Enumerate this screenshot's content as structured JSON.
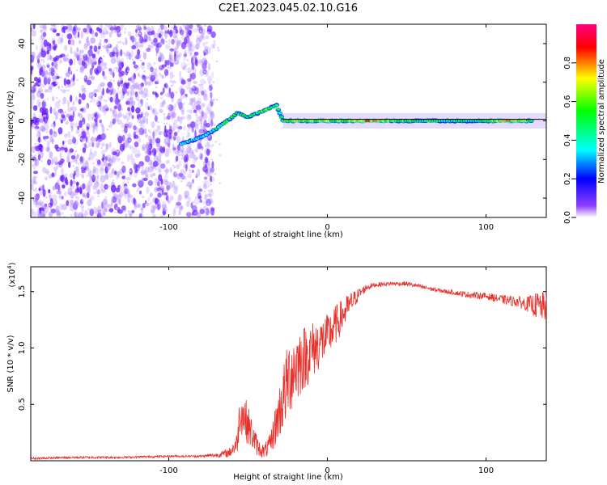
{
  "title": "C2E1.2023.045.02.10.G16",
  "chart_data": [
    {
      "type": "heatmap",
      "description_of_axes": "spectrogram",
      "xlabel": "Height of straight line (km)",
      "ylabel": "Frequency (Hz)",
      "xlim": [
        -187,
        138
      ],
      "ylim": [
        -50,
        50
      ],
      "xticks": [
        -100,
        0,
        100
      ],
      "xtick_labels": [
        "-100",
        "0",
        "100"
      ],
      "yticks": [
        -40,
        -20,
        0,
        20,
        40
      ],
      "ytick_labels": [
        "-40",
        "-20",
        "0",
        "20",
        "40"
      ],
      "colorbar": {
        "label": "Normalized spectral amplitude",
        "range": [
          0,
          1
        ],
        "ticks": [
          0.0,
          0.2,
          0.4,
          0.6,
          0.8
        ],
        "tick_labels": [
          "0.0",
          "0.2",
          "0.4",
          "0.6",
          "0.8"
        ],
        "colors": [
          "#ffffff",
          "#7f00ff",
          "#0000ff",
          "#00ffff",
          "#00ff00",
          "#ffff00",
          "#ff0000",
          "#ff0080"
        ]
      },
      "noise_region_x": [
        -187,
        -72
      ],
      "signal_track": [
        {
          "x": -92,
          "y": -12,
          "amp": 0.35
        },
        {
          "x": -85,
          "y": -10,
          "amp": 0.4
        },
        {
          "x": -78,
          "y": -8,
          "amp": 0.4
        },
        {
          "x": -70,
          "y": -4,
          "amp": 0.45
        },
        {
          "x": -63,
          "y": 0,
          "amp": 0.5
        },
        {
          "x": -57,
          "y": 4,
          "amp": 0.5
        },
        {
          "x": -50,
          "y": 2,
          "amp": 0.45
        },
        {
          "x": -44,
          "y": 4,
          "amp": 0.5
        },
        {
          "x": -38,
          "y": 6,
          "amp": 0.55
        },
        {
          "x": -32,
          "y": 8,
          "amp": 0.5
        },
        {
          "x": -28,
          "y": 0,
          "amp": 0.45
        },
        {
          "x": -20,
          "y": 0,
          "amp": 0.7
        },
        {
          "x": -10,
          "y": 0,
          "amp": 0.6
        },
        {
          "x": 0,
          "y": 0,
          "amp": 0.65
        },
        {
          "x": 10,
          "y": 0,
          "amp": 0.6
        },
        {
          "x": 25,
          "y": 0,
          "amp": 0.8
        },
        {
          "x": 45,
          "y": 0,
          "amp": 0.55
        },
        {
          "x": 65,
          "y": 0,
          "amp": 0.5
        },
        {
          "x": 85,
          "y": 0,
          "amp": 0.45
        },
        {
          "x": 100,
          "y": 0,
          "amp": 0.55
        },
        {
          "x": 115,
          "y": 0,
          "amp": 0.75
        },
        {
          "x": 130,
          "y": 0,
          "amp": 0.5
        }
      ]
    },
    {
      "type": "line",
      "xlabel": "Height of straight line (km)",
      "ylabel": "SNR (10 * v/v)",
      "yscale_label": "(x10",
      "yscale_exp": "4",
      "yscale_close": ")",
      "xlim": [
        -187,
        138
      ],
      "ylim": [
        0,
        1.72
      ],
      "xticks": [
        -100,
        0,
        100
      ],
      "xtick_labels": [
        "-100",
        "0",
        "100"
      ],
      "yticks": [
        0.5,
        1.0,
        1.5
      ],
      "ytick_labels": [
        "0.5",
        "1.0",
        "1.5"
      ],
      "color": "#e8302a",
      "x": [
        -187,
        -160,
        -130,
        -100,
        -80,
        -70,
        -62,
        -57,
        -55,
        -52,
        -48,
        -44,
        -40,
        -36,
        -32,
        -28,
        -24,
        -20,
        -16,
        -12,
        -8,
        -4,
        0,
        5,
        10,
        15,
        20,
        25,
        30,
        40,
        50,
        60,
        70,
        80,
        90,
        100,
        110,
        120,
        125,
        130,
        134,
        138
      ],
      "y": [
        0.02,
        0.03,
        0.03,
        0.04,
        0.04,
        0.05,
        0.07,
        0.15,
        0.45,
        0.38,
        0.25,
        0.12,
        0.08,
        0.14,
        0.35,
        0.55,
        0.75,
        0.85,
        0.9,
        0.95,
        1.0,
        1.05,
        1.1,
        1.2,
        1.3,
        1.4,
        1.48,
        1.54,
        1.56,
        1.57,
        1.57,
        1.54,
        1.51,
        1.49,
        1.47,
        1.46,
        1.43,
        1.41,
        1.39,
        1.38,
        1.37,
        1.36
      ],
      "noise_amp": [
        0.01,
        0.01,
        0.01,
        0.01,
        0.01,
        0.02,
        0.04,
        0.1,
        0.2,
        0.2,
        0.15,
        0.08,
        0.06,
        0.1,
        0.2,
        0.3,
        0.35,
        0.35,
        0.3,
        0.28,
        0.25,
        0.22,
        0.2,
        0.18,
        0.14,
        0.1,
        0.05,
        0.03,
        0.02,
        0.02,
        0.02,
        0.02,
        0.02,
        0.02,
        0.03,
        0.03,
        0.04,
        0.05,
        0.06,
        0.1,
        0.14,
        0.12
      ]
    }
  ]
}
